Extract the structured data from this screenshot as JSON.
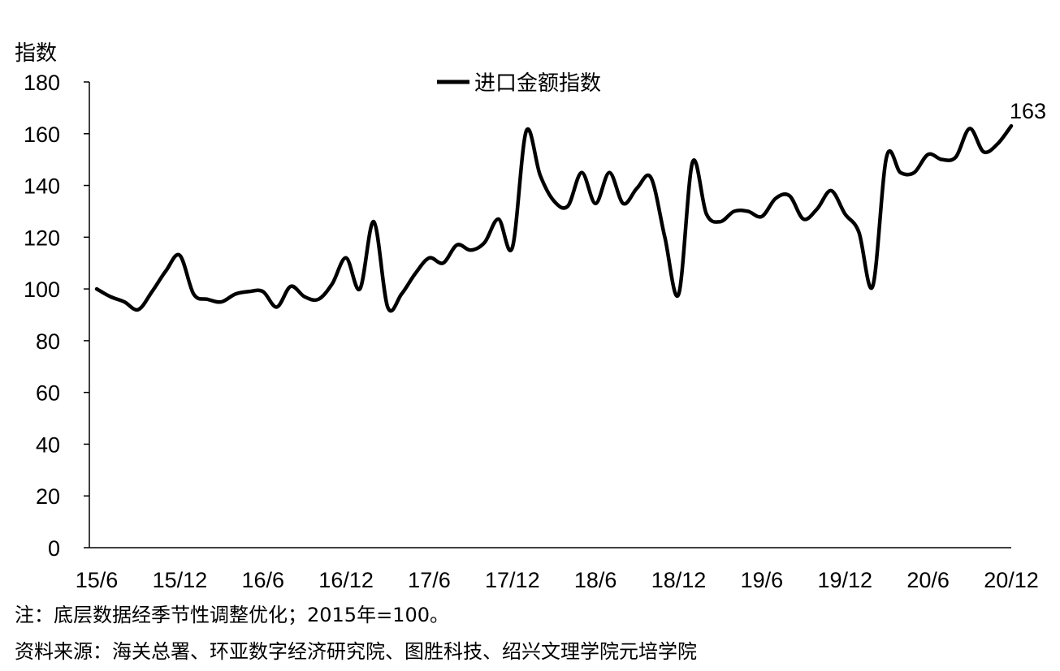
{
  "chart_data": {
    "type": "line",
    "ylabel": "指数",
    "ylim": [
      0,
      180
    ],
    "yticks": [
      0,
      20,
      40,
      60,
      80,
      100,
      120,
      140,
      160,
      180
    ],
    "xtick_labels": [
      "15/6",
      "15/12",
      "16/6",
      "16/12",
      "17/6",
      "17/12",
      "18/6",
      "18/12",
      "19/6",
      "19/12",
      "20/6",
      "20/12"
    ],
    "x": [
      "15/6",
      "15/7",
      "15/8",
      "15/9",
      "15/10",
      "15/11",
      "15/12",
      "16/1",
      "16/2",
      "16/3",
      "16/4",
      "16/5",
      "16/6",
      "16/7",
      "16/8",
      "16/9",
      "16/10",
      "16/11",
      "16/12",
      "17/1",
      "17/2",
      "17/3",
      "17/4",
      "17/5",
      "17/6",
      "17/7",
      "17/8",
      "17/9",
      "17/10",
      "17/11",
      "17/12",
      "18/1",
      "18/2",
      "18/3",
      "18/4",
      "18/5",
      "18/6",
      "18/7",
      "18/8",
      "18/9",
      "18/10",
      "18/11",
      "18/12",
      "19/1",
      "19/2",
      "19/3",
      "19/4",
      "19/5",
      "19/6",
      "19/7",
      "19/8",
      "19/9",
      "19/10",
      "19/11",
      "19/12",
      "20/1",
      "20/2",
      "20/3",
      "20/4",
      "20/5",
      "20/6",
      "20/7",
      "20/8",
      "20/9",
      "20/10",
      "20/11",
      "20/12"
    ],
    "series": [
      {
        "name": "进口金额指数",
        "color": "#000000",
        "values": [
          100,
          97,
          95,
          92,
          99,
          107,
          113,
          98,
          96,
          95,
          98,
          99,
          99,
          93,
          101,
          97,
          96,
          102,
          112,
          100,
          126,
          93,
          98,
          106,
          112,
          110,
          117,
          115,
          118,
          127,
          116,
          161,
          144,
          134,
          132,
          145,
          133,
          145,
          133,
          139,
          143,
          120,
          98,
          149,
          129,
          126,
          130,
          130,
          128,
          135,
          136,
          127,
          131,
          138,
          129,
          122,
          101,
          151,
          145,
          145,
          152,
          150,
          151,
          162,
          153,
          156,
          163
        ]
      }
    ],
    "legend_position": "top-center",
    "grid": false,
    "annotations": [
      {
        "label": "163",
        "point": "20/12"
      }
    ]
  },
  "footnotes": {
    "note": "注：底层数据经季节性调整优化；2015年=100。",
    "source": "资料来源：海关总署、环亚数字经济研究院、图胜科技、绍兴文理学院元培学院"
  }
}
